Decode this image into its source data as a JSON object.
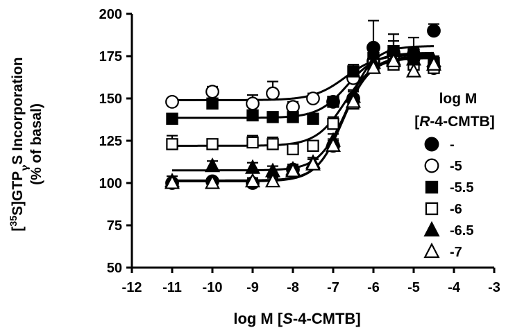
{
  "chart_data": {
    "type": "scatter",
    "title": "",
    "xlabel_parts": [
      "log M [",
      "S",
      "-4-CMTB]"
    ],
    "ylabel_line1_parts": [
      "[",
      "35",
      "S]GTP",
      "γ",
      "S Incorporation"
    ],
    "ylabel_line2": "(% of basal)",
    "xlim": [
      -12,
      -3
    ],
    "ylim": [
      50,
      200
    ],
    "x_ticks": [
      -12,
      -11,
      -10,
      -9,
      -8,
      -7,
      -6,
      -5,
      -4,
      -3
    ],
    "x_tick_labels": [
      "-12",
      "-11",
      "-10",
      "-9",
      "-8",
      "-7",
      "-6",
      "-5",
      "-4",
      "-3"
    ],
    "y_ticks": [
      50,
      75,
      100,
      125,
      150,
      175,
      200
    ],
    "y_tick_labels": [
      "50",
      "75",
      "100",
      "125",
      "150",
      "175",
      "200"
    ],
    "grid": false,
    "legend": {
      "position": "right",
      "title_line1": "log M",
      "title_line2_parts": [
        "[",
        "R",
        "-4-CMTB]"
      ]
    },
    "series": [
      {
        "name": "-",
        "marker": "circle",
        "filled": true,
        "x": [
          -11,
          -10,
          -9,
          -8,
          -7,
          -6.5,
          -6,
          -5.5,
          -5,
          -4.5
        ],
        "y": [
          100,
          101,
          100,
          108,
          122,
          150,
          180,
          177,
          176,
          190
        ],
        "err": [
          2,
          2,
          2,
          3,
          4,
          4,
          16,
          11,
          10,
          4
        ],
        "fit": {
          "bottom": 101.5,
          "top": 181,
          "logec50": -6.7,
          "hill": 1.3
        }
      },
      {
        "name": "-5",
        "marker": "circle",
        "filled": false,
        "x": [
          -11,
          -10,
          -9,
          -8.5,
          -8,
          -7.5,
          -7,
          -6.5,
          -6,
          -5.5,
          -5,
          -4.5
        ],
        "y": [
          148,
          154,
          147,
          153,
          145,
          150,
          148,
          162,
          172,
          176,
          174,
          168
        ],
        "err": [
          2,
          3,
          5,
          7,
          3,
          3,
          3,
          3,
          6,
          5,
          4,
          4
        ],
        "fit": {
          "bottom": 149,
          "top": 176,
          "logec50": -6.7,
          "hill": 1.1
        }
      },
      {
        "name": "-5.5",
        "marker": "square",
        "filled": true,
        "x": [
          -11,
          -10,
          -9,
          -8.5,
          -8,
          -7.5,
          -7,
          -6.5,
          -6,
          -5.5,
          -5,
          -4.5
        ],
        "y": [
          138,
          147,
          140,
          139,
          139,
          138,
          148,
          166,
          174,
          178,
          176,
          171
        ],
        "err": [
          3,
          3,
          3,
          3,
          3,
          3,
          3,
          4,
          8,
          6,
          4,
          3
        ],
        "fit": {
          "bottom": 138.5,
          "top": 177,
          "logec50": -6.65,
          "hill": 1.2
        }
      },
      {
        "name": "-6",
        "marker": "square",
        "filled": false,
        "x": [
          -11,
          -10,
          -9,
          -8.5,
          -8,
          -7.5,
          -7,
          -6.5,
          -6,
          -5.5,
          -5,
          -4.5
        ],
        "y": [
          123,
          123,
          124,
          123,
          120,
          122,
          135,
          147,
          170,
          170,
          170,
          168
        ],
        "err": [
          5,
          3,
          4,
          4,
          3,
          3,
          4,
          4,
          5,
          5,
          4,
          3
        ],
        "fit": {
          "bottom": 122,
          "top": 174,
          "logec50": -6.7,
          "hill": 1.2
        }
      },
      {
        "name": "-6.5",
        "marker": "triangle",
        "filled": true,
        "x": [
          -11,
          -10,
          -9,
          -8.5,
          -8,
          -7.5,
          -7,
          -6.5,
          -6,
          -5.5,
          -5,
          -4.5
        ],
        "y": [
          101,
          110,
          109,
          107,
          108,
          112,
          125,
          151,
          171,
          173,
          173,
          172
        ],
        "err": [
          3,
          3,
          3,
          3,
          3,
          3,
          4,
          4,
          6,
          5,
          4,
          3
        ],
        "fit": {
          "bottom": 107.5,
          "top": 175,
          "logec50": -6.7,
          "hill": 1.3
        }
      },
      {
        "name": "-7",
        "marker": "triangle",
        "filled": false,
        "x": [
          -11,
          -10,
          -9,
          -8.5,
          -8,
          -7.5,
          -7,
          -6.5,
          -6,
          -5.5,
          -5,
          -4.5
        ],
        "y": [
          100,
          100,
          101,
          101,
          107,
          111,
          122,
          148,
          168,
          172,
          166,
          170
        ],
        "err": [
          2,
          2,
          2,
          2,
          3,
          3,
          3,
          4,
          5,
          5,
          4,
          3
        ],
        "fit": {
          "bottom": 101,
          "top": 174,
          "logec50": -6.75,
          "hill": 1.3
        }
      }
    ]
  }
}
